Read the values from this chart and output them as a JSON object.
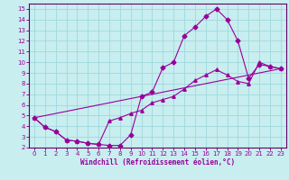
{
  "xlabel": "Windchill (Refroidissement éolien,°C)",
  "background_color": "#c8eef0",
  "grid_color": "#a0d8dc",
  "line_color": "#990099",
  "spine_color": "#660066",
  "xlim": [
    -0.5,
    23.5
  ],
  "ylim": [
    2,
    15.5
  ],
  "xticks": [
    0,
    1,
    2,
    3,
    4,
    5,
    6,
    7,
    8,
    9,
    10,
    11,
    12,
    13,
    14,
    15,
    16,
    17,
    18,
    19,
    20,
    21,
    22,
    23
  ],
  "yticks": [
    2,
    3,
    4,
    5,
    6,
    7,
    8,
    9,
    10,
    11,
    12,
    13,
    14,
    15
  ],
  "series1_x": [
    0,
    1,
    2,
    3,
    4,
    5,
    6,
    7,
    8,
    9,
    10,
    11,
    12,
    13,
    14,
    15,
    16,
    17,
    18,
    19,
    20,
    21,
    22,
    23
  ],
  "series1_y": [
    4.8,
    3.9,
    3.5,
    2.7,
    2.6,
    2.4,
    2.3,
    2.2,
    2.2,
    3.2,
    6.8,
    7.2,
    9.5,
    10.0,
    12.5,
    13.3,
    14.3,
    15.0,
    14.0,
    12.0,
    8.5,
    9.8,
    9.6,
    9.4
  ],
  "series2_x": [
    0,
    1,
    2,
    3,
    4,
    5,
    6,
    7,
    8,
    9,
    10,
    11,
    12,
    13,
    14,
    15,
    16,
    17,
    18,
    19,
    20,
    21,
    22,
    23
  ],
  "series2_y": [
    4.8,
    3.9,
    3.5,
    2.7,
    2.6,
    2.4,
    2.3,
    4.5,
    4.8,
    5.2,
    5.5,
    6.2,
    6.5,
    6.8,
    7.5,
    8.3,
    8.8,
    9.3,
    8.8,
    8.2,
    8.0,
    10.0,
    9.6,
    9.4
  ],
  "series3_x": [
    0,
    23
  ],
  "series3_y": [
    4.8,
    9.4
  ]
}
